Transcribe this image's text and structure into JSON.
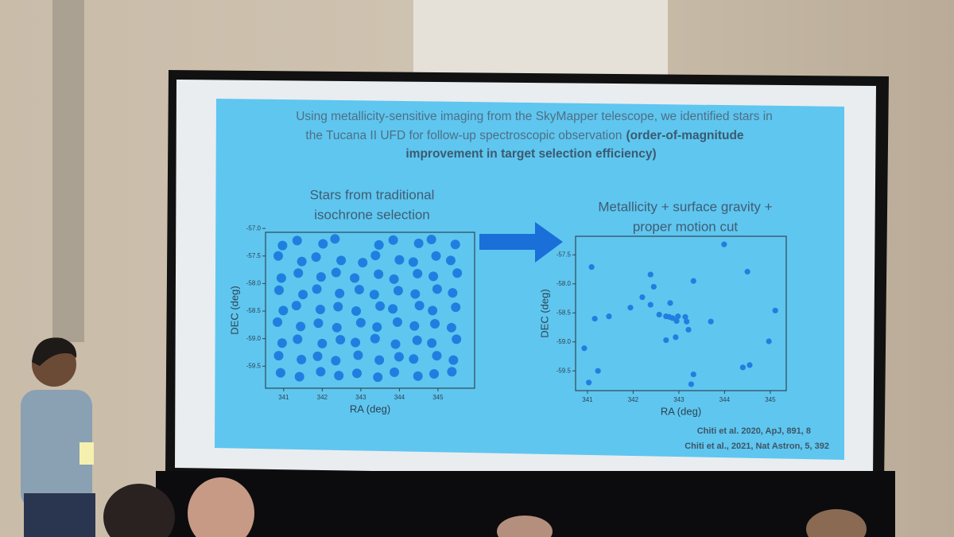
{
  "slide": {
    "intro": [
      [
        {
          "text": "Using metallicity-sensitive imaging from the SkyMapper telescope, we identified stars in",
          "bold": false
        }
      ],
      [
        {
          "text": "the Tucana II UFD for follow-up spectroscopic observation",
          "bold": false
        },
        {
          "text": "(order-of-magnitude",
          "bold": true
        }
      ],
      [
        {
          "text": "improvement in target selection efficiency)",
          "bold": true
        }
      ]
    ],
    "citations": [
      "Chiti et al. 2020, ApJ, 891, 8",
      "Chiti et al., 2021, Nat Astron, 5, 392"
    ]
  },
  "chart_data": [
    {
      "type": "scatter",
      "title": [
        "Stars from traditional",
        "isochrone selection"
      ],
      "xlabel": "RA (deg)",
      "ylabel": "DEC (deg)",
      "color": "#1f7fe0",
      "xlim": [
        340.53,
        345.95
      ],
      "ylim": [
        -59.9,
        -57.07
      ],
      "xticks": [
        341,
        342,
        343,
        344,
        345
      ],
      "yticks": [
        {
          "value": -57.0,
          "label": "-57.0"
        },
        {
          "value": -57.5,
          "label": "-57.5"
        },
        {
          "value": -58.0,
          "label": "-58.0"
        },
        {
          "value": -58.5,
          "label": "-58.5"
        },
        {
          "value": -59.0,
          "label": "-59.0"
        },
        {
          "value": -59.5,
          "label": "-59.5"
        }
      ],
      "x": [
        340.97,
        341.35,
        342.02,
        342.33,
        343.47,
        343.84,
        344.5,
        344.83,
        345.45,
        340.86,
        341.47,
        341.84,
        342.49,
        343.05,
        343.38,
        344.0,
        344.36,
        344.95,
        345.33,
        340.94,
        341.38,
        341.97,
        342.36,
        342.84,
        343.46,
        343.86,
        344.47,
        344.88,
        345.5,
        340.88,
        341.5,
        341.86,
        342.45,
        342.96,
        343.35,
        343.97,
        344.41,
        344.98,
        345.38,
        340.99,
        341.33,
        341.95,
        342.41,
        342.88,
        343.5,
        343.83,
        344.52,
        344.86,
        345.46,
        340.84,
        341.44,
        341.9,
        342.38,
        343.0,
        343.42,
        343.95,
        344.39,
        344.92,
        345.35,
        340.96,
        341.36,
        342.0,
        342.47,
        342.86,
        343.37,
        343.9,
        344.46,
        344.84,
        345.48,
        340.87,
        341.46,
        341.88,
        342.35,
        342.93,
        343.48,
        343.99,
        344.37,
        344.97,
        345.4,
        340.92,
        341.41,
        341.96,
        342.43,
        342.9,
        343.44,
        343.87,
        344.48,
        344.9,
        345.36
      ],
      "y": [
        -57.31,
        -57.22,
        -57.28,
        -57.19,
        -57.3,
        -57.21,
        -57.27,
        -57.2,
        -57.29,
        -57.5,
        -57.6,
        -57.52,
        -57.58,
        -57.62,
        -57.49,
        -57.57,
        -57.61,
        -57.5,
        -57.58,
        -57.9,
        -57.81,
        -57.88,
        -57.8,
        -57.9,
        -57.83,
        -57.92,
        -57.82,
        -57.87,
        -57.81,
        -58.12,
        -58.2,
        -58.1,
        -58.18,
        -58.11,
        -58.2,
        -58.13,
        -58.19,
        -58.1,
        -58.17,
        -58.49,
        -58.4,
        -58.47,
        -58.42,
        -58.5,
        -58.41,
        -58.46,
        -58.4,
        -58.49,
        -58.43,
        -58.7,
        -58.78,
        -58.72,
        -58.8,
        -58.71,
        -58.79,
        -58.7,
        -58.77,
        -58.73,
        -58.8,
        -59.08,
        -59.01,
        -59.09,
        -59.02,
        -59.07,
        -59.0,
        -59.1,
        -59.03,
        -59.08,
        -59.01,
        -59.31,
        -59.38,
        -59.32,
        -59.4,
        -59.3,
        -59.39,
        -59.33,
        -59.37,
        -59.31,
        -59.39,
        -59.62,
        -59.69,
        -59.6,
        -59.67,
        -59.63,
        -59.7,
        -59.61,
        -59.68,
        -59.64,
        -59.6
      ]
    },
    {
      "type": "scatter",
      "title": [
        "Metallicity + surface gravity +",
        "proper motion cut"
      ],
      "xlabel": "RA (deg)",
      "ylabel": "DEC (deg)",
      "color": "#1f7fe0",
      "xlim": [
        340.74,
        345.35
      ],
      "ylim": [
        -59.84,
        -57.18
      ],
      "xticks": [
        341,
        342,
        343,
        344,
        345
      ],
      "yticks": [
        {
          "value": -57.5,
          "label": "-57.5"
        },
        {
          "value": -58.0,
          "label": "-58.0"
        },
        {
          "value": -58.5,
          "label": "-58.5"
        },
        {
          "value": -59.0,
          "label": "-59.0"
        },
        {
          "value": -59.5,
          "label": "-59.5"
        }
      ],
      "x": [
        341.09,
        343.99,
        344.5,
        342.38,
        343.32,
        342.45,
        341.16,
        341.47,
        341.94,
        342.2,
        342.38,
        342.81,
        342.57,
        342.72,
        342.79,
        342.86,
        342.95,
        342.98,
        343.14,
        343.17,
        343.21,
        342.93,
        342.72,
        343.7,
        345.11,
        340.93,
        344.97,
        341.23,
        341.03,
        343.32,
        343.27,
        344.4,
        344.55
      ],
      "y": [
        -57.71,
        -57.32,
        -57.79,
        -57.84,
        -57.95,
        -58.05,
        -58.6,
        -58.56,
        -58.41,
        -58.23,
        -58.36,
        -58.33,
        -58.53,
        -58.56,
        -58.57,
        -58.59,
        -58.64,
        -58.56,
        -58.57,
        -58.65,
        -58.79,
        -58.92,
        -58.97,
        -58.65,
        -58.46,
        -59.11,
        -58.99,
        -59.5,
        -59.7,
        -59.56,
        -59.73,
        -59.44,
        -59.4
      ]
    }
  ]
}
